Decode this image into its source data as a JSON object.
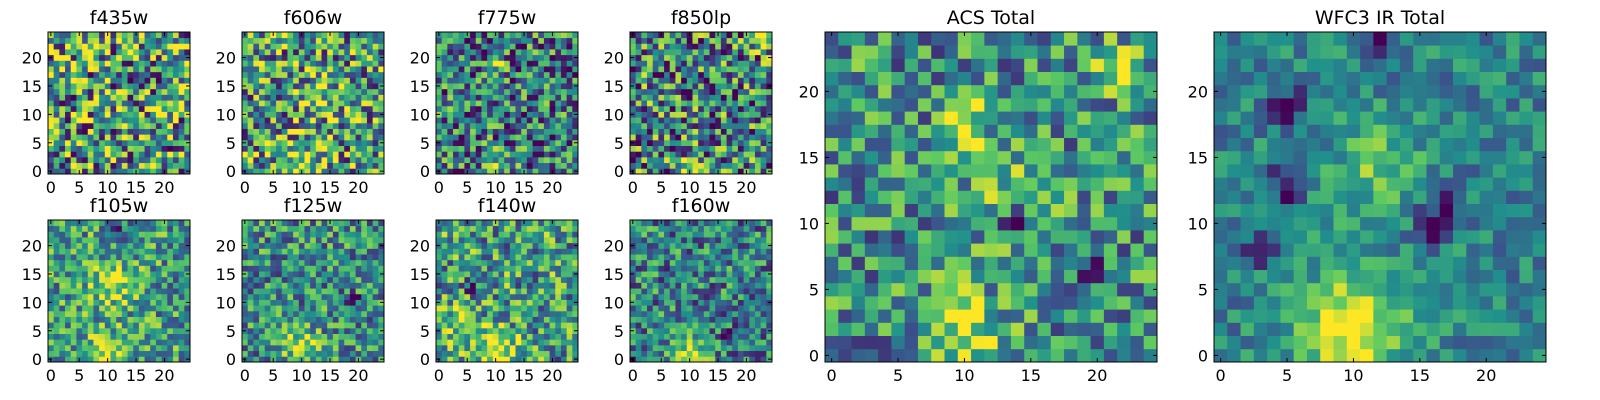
{
  "figure": {
    "colormap": [
      "#440154",
      "#3b528b",
      "#21918c",
      "#5ec962",
      "#fde725"
    ],
    "background": "#ffffff"
  },
  "chart_data": [
    {
      "type": "heatmap",
      "title": "f435w",
      "grid_size": 25,
      "xlim": [
        0,
        24
      ],
      "ylim": [
        0,
        24
      ],
      "xticks": [
        0,
        5,
        10,
        15,
        20
      ],
      "yticks": [
        0,
        5,
        10,
        15,
        20
      ],
      "bright_spots": [],
      "dark_spots": [],
      "noise": 0.55,
      "base": 0.55,
      "seed": 11
    },
    {
      "type": "heatmap",
      "title": "f606w",
      "grid_size": 25,
      "xlim": [
        0,
        24
      ],
      "ylim": [
        0,
        24
      ],
      "xticks": [
        0,
        5,
        10,
        15,
        20
      ],
      "yticks": [
        0,
        5,
        10,
        15,
        20
      ],
      "bright_spots": [
        [
          10,
          1,
          0.45,
          2.2
        ],
        [
          13,
          13,
          0.25,
          2.5
        ]
      ],
      "dark_spots": [],
      "noise": 0.5,
      "base": 0.55,
      "seed": 23
    },
    {
      "type": "heatmap",
      "title": "f775w",
      "grid_size": 25,
      "xlim": [
        0,
        24
      ],
      "ylim": [
        0,
        24
      ],
      "xticks": [
        0,
        5,
        10,
        15,
        20
      ],
      "yticks": [
        0,
        5,
        10,
        15,
        20
      ],
      "bright_spots": [
        [
          10,
          19,
          0.6,
          1.0
        ],
        [
          10,
          1,
          0.35,
          1.8
        ]
      ],
      "dark_spots": [],
      "noise": 0.45,
      "base": 0.42,
      "seed": 37
    },
    {
      "type": "heatmap",
      "title": "f850lp",
      "grid_size": 25,
      "xlim": [
        0,
        24
      ],
      "ylim": [
        0,
        24
      ],
      "xticks": [
        0,
        5,
        10,
        15,
        20
      ],
      "yticks": [
        0,
        5,
        10,
        15,
        20
      ],
      "bright_spots": [
        [
          23,
          23,
          0.55,
          1.3
        ],
        [
          10,
          1,
          0.3,
          1.6
        ]
      ],
      "dark_spots": [],
      "noise": 0.5,
      "base": 0.45,
      "seed": 41
    },
    {
      "type": "heatmap",
      "title": "f105w",
      "grid_size": 25,
      "xlim": [
        0,
        24
      ],
      "ylim": [
        0,
        24
      ],
      "xticks": [
        0,
        5,
        10,
        15,
        20
      ],
      "yticks": [
        0,
        5,
        10,
        15,
        20
      ],
      "bright_spots": [
        [
          10,
          1,
          0.45,
          2.5
        ],
        [
          11,
          13,
          0.3,
          3.0
        ]
      ],
      "dark_spots": [
        [
          12,
          23,
          0.35,
          1.0
        ]
      ],
      "noise": 0.35,
      "base": 0.55,
      "seed": 53
    },
    {
      "type": "heatmap",
      "title": "f125w",
      "grid_size": 25,
      "xlim": [
        0,
        24
      ],
      "ylim": [
        0,
        24
      ],
      "xticks": [
        0,
        5,
        10,
        15,
        20
      ],
      "yticks": [
        0,
        5,
        10,
        15,
        20
      ],
      "bright_spots": [
        [
          10,
          2,
          0.45,
          2.2
        ]
      ],
      "dark_spots": [
        [
          19,
          10,
          0.45,
          1.0
        ]
      ],
      "noise": 0.35,
      "base": 0.5,
      "seed": 67
    },
    {
      "type": "heatmap",
      "title": "f140w",
      "grid_size": 25,
      "xlim": [
        0,
        24
      ],
      "ylim": [
        0,
        24
      ],
      "xticks": [
        0,
        5,
        10,
        15,
        20
      ],
      "yticks": [
        0,
        5,
        10,
        15,
        20
      ],
      "bright_spots": [
        [
          10,
          1,
          0.45,
          3.0
        ],
        [
          3,
          6,
          0.3,
          2.5
        ]
      ],
      "dark_spots": [
        [
          6,
          13,
          0.4,
          1.0
        ],
        [
          12,
          20,
          0.35,
          1.0
        ]
      ],
      "noise": 0.4,
      "base": 0.55,
      "seed": 79
    },
    {
      "type": "heatmap",
      "title": "f160w",
      "grid_size": 25,
      "xlim": [
        0,
        24
      ],
      "ylim": [
        0,
        24
      ],
      "xticks": [
        0,
        5,
        10,
        15,
        20
      ],
      "yticks": [
        0,
        5,
        10,
        15,
        20
      ],
      "bright_spots": [
        [
          10,
          1,
          0.5,
          2.2
        ]
      ],
      "dark_spots": [
        [
          17,
          4,
          0.35,
          1.0
        ],
        [
          0,
          0,
          0.4,
          0.8
        ]
      ],
      "noise": 0.35,
      "base": 0.45,
      "seed": 83
    },
    {
      "type": "heatmap",
      "title": "ACS Total",
      "grid_size": 25,
      "xlim": [
        0,
        24
      ],
      "ylim": [
        0,
        24
      ],
      "xticks": [
        0,
        5,
        10,
        15,
        20
      ],
      "yticks": [
        0,
        5,
        10,
        15,
        20
      ],
      "bright_spots": [
        [
          10,
          18,
          0.5,
          1.2
        ],
        [
          10,
          2,
          0.45,
          2.0
        ],
        [
          21,
          22,
          0.45,
          1.2
        ],
        [
          13,
          13,
          0.2,
          2.5
        ]
      ],
      "dark_spots": [
        [
          14,
          10,
          0.4,
          0.8
        ],
        [
          19,
          7,
          0.3,
          1.0
        ]
      ],
      "noise": 0.35,
      "base": 0.5,
      "seed": 97
    },
    {
      "type": "heatmap",
      "title": "WFC3 IR Total",
      "grid_size": 25,
      "xlim": [
        0,
        24
      ],
      "ylim": [
        0,
        24
      ],
      "xticks": [
        0,
        5,
        10,
        15,
        20
      ],
      "yticks": [
        0,
        5,
        10,
        15,
        20
      ],
      "bright_spots": [
        [
          10,
          2,
          0.6,
          2.8
        ],
        [
          12,
          14,
          0.3,
          2.5
        ]
      ],
      "dark_spots": [
        [
          5,
          13,
          0.5,
          1.0
        ],
        [
          5,
          19,
          0.45,
          1.0
        ],
        [
          12,
          24,
          0.4,
          0.8
        ],
        [
          16,
          10,
          0.45,
          1.0
        ],
        [
          17,
          12,
          0.4,
          0.8
        ],
        [
          3,
          8,
          0.35,
          0.8
        ]
      ],
      "noise": 0.2,
      "base": 0.45,
      "seed": 101
    }
  ]
}
